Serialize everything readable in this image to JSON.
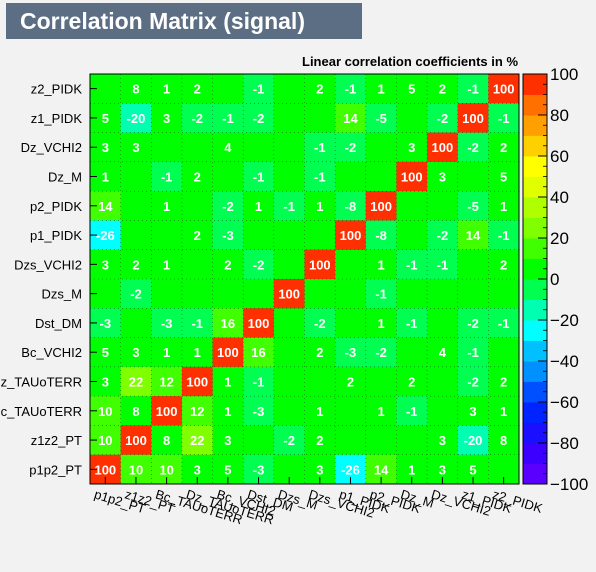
{
  "title": "Correlation Matrix (signal)",
  "chart_data": {
    "type": "heatmap",
    "subtitle": "Linear correlation coefficients in %",
    "x_labels": [
      "p1p2_PT",
      "z1z2_PT",
      "Bc_TAUoTERR",
      "Dz_TAUoTERR",
      "Bc_VCHI2",
      "Dst_DM",
      "Dzs_M",
      "Dzs_VCHI2",
      "p1_PIDK",
      "p2_PIDK",
      "Dz_M",
      "Dz_VCHI2",
      "z1_PIDK",
      "z2_PIDK"
    ],
    "y_labels": [
      "z2_PIDK",
      "z1_PIDK",
      "Dz_VCHI2",
      "Dz_M",
      "p2_PIDK",
      "p1_PIDK",
      "Dzs_VCHI2",
      "Dzs_M",
      "Dst_DM",
      "Bc_VCHI2",
      "Dz_TAUoTERR",
      "Bc_TAUoTERR",
      "z1z2_PT",
      "p1p2_PT"
    ],
    "y_labels_display": [
      "z2_PIDK",
      "z1_PIDK",
      "Dz_VCHI2",
      "Dz_M",
      "p2_PIDK",
      "p1_PIDK",
      "Dzs_VCHI2",
      "Dzs_M",
      "Dst_DM",
      "Bc_VCHI2",
      "z_TAUoTERR",
      "c_TAUoTERR",
      "z1z2_PT",
      "p1p2_PT"
    ],
    "values": [
      [
        null,
        8,
        1,
        2,
        null,
        -1,
        null,
        2,
        -1,
        1,
        5,
        2,
        -1,
        100
      ],
      [
        5,
        -20,
        3,
        -2,
        -1,
        -2,
        null,
        null,
        14,
        -5,
        null,
        -2,
        100,
        -1
      ],
      [
        3,
        3,
        null,
        null,
        4,
        null,
        null,
        -1,
        -2,
        null,
        3,
        100,
        -2,
        2
      ],
      [
        1,
        null,
        -1,
        2,
        null,
        -1,
        null,
        -1,
        null,
        null,
        100,
        3,
        null,
        5
      ],
      [
        14,
        null,
        1,
        null,
        -2,
        1,
        -1,
        1,
        -8,
        100,
        null,
        null,
        -5,
        1
      ],
      [
        -26,
        null,
        null,
        2,
        -3,
        null,
        null,
        null,
        100,
        -8,
        null,
        -2,
        14,
        -1
      ],
      [
        3,
        2,
        1,
        null,
        2,
        -2,
        null,
        100,
        null,
        1,
        -1,
        -1,
        null,
        2
      ],
      [
        null,
        -2,
        null,
        null,
        null,
        null,
        100,
        null,
        null,
        -1,
        null,
        null,
        null,
        null
      ],
      [
        -3,
        null,
        -3,
        -1,
        16,
        100,
        null,
        -2,
        null,
        1,
        -1,
        null,
        -2,
        -1
      ],
      [
        5,
        3,
        1,
        1,
        100,
        16,
        null,
        2,
        -3,
        -2,
        null,
        4,
        -1,
        null
      ],
      [
        3,
        22,
        12,
        100,
        1,
        -1,
        null,
        null,
        2,
        null,
        2,
        null,
        -2,
        2
      ],
      [
        10,
        8,
        100,
        12,
        1,
        -3,
        null,
        1,
        null,
        1,
        -1,
        null,
        3,
        1
      ],
      [
        10,
        100,
        8,
        22,
        3,
        null,
        -2,
        2,
        null,
        null,
        null,
        3,
        -20,
        8
      ],
      [
        100,
        10,
        10,
        3,
        5,
        -3,
        null,
        3,
        -26,
        14,
        1,
        3,
        5,
        null
      ]
    ],
    "zlim": [
      -100,
      100
    ],
    "colorbar_ticks": [
      100,
      80,
      60,
      40,
      20,
      0,
      -20,
      -40,
      -60,
      -80,
      -100
    ],
    "colorbar_tick_labels": [
      "100",
      "80",
      "60",
      "40",
      "20",
      "0",
      "−20",
      "−40",
      "−60",
      "−80",
      "−100"
    ],
    "grid": true,
    "colors": {
      "cell_zero": "#00ff00",
      "cell_text": "#ffffff",
      "background": "#f2f2f2",
      "title_bg": "#5c6e84",
      "colorbar": [
        "#5a00ff",
        "#3b00ff",
        "#1a10ff",
        "#0024ff",
        "#0050ff",
        "#0090ff",
        "#00c0ff",
        "#00ffff",
        "#00ffb0",
        "#00ff50",
        "#00ff00",
        "#40ff00",
        "#80ff00",
        "#b0ff00",
        "#e0ff00",
        "#ffff00",
        "#ffd000",
        "#ffa000",
        "#ff7000",
        "#ff3000"
      ]
    }
  }
}
